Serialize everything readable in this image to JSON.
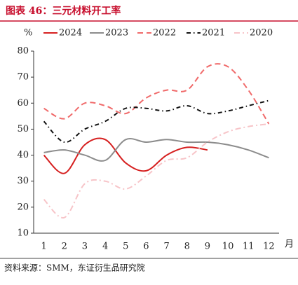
{
  "chart_data": {
    "type": "line",
    "title": "图表 46：三元材料开工率",
    "y_unit": "%",
    "x_unit": "月",
    "source": "资料来源：SMM，东证衍生品研究院",
    "categories": [
      "1",
      "2",
      "3",
      "4",
      "5",
      "6",
      "7",
      "8",
      "9",
      "10",
      "11",
      "12"
    ],
    "ylim": [
      10,
      80
    ],
    "yticks": [
      10,
      20,
      30,
      40,
      50,
      60,
      70,
      80
    ],
    "series": [
      {
        "name": "2024",
        "color": "#d62020",
        "dash": "",
        "values": [
          40,
          33,
          44,
          46,
          37,
          34,
          40,
          43,
          42,
          null,
          null,
          null
        ]
      },
      {
        "name": "2023",
        "color": "#8c8c8c",
        "dash": "",
        "values": [
          41,
          42,
          40,
          38,
          46,
          45,
          46,
          45,
          45,
          44,
          42,
          39
        ]
      },
      {
        "name": "2022",
        "color": "#f06a6a",
        "dash": "8 5",
        "values": [
          58,
          54,
          60,
          59,
          56,
          62,
          65,
          65,
          74,
          74,
          65,
          52
        ]
      },
      {
        "name": "2021",
        "color": "#111111",
        "dash": "6 4 1.5 4",
        "values": [
          53,
          45,
          50,
          53,
          58,
          58,
          57,
          59,
          56,
          57,
          59,
          61
        ]
      },
      {
        "name": "2020",
        "color": "#f7c4c8",
        "dash": "8 4 2 4",
        "values": [
          23,
          16,
          29,
          30,
          27,
          32,
          38,
          39,
          45,
          49,
          51,
          52
        ]
      }
    ]
  }
}
